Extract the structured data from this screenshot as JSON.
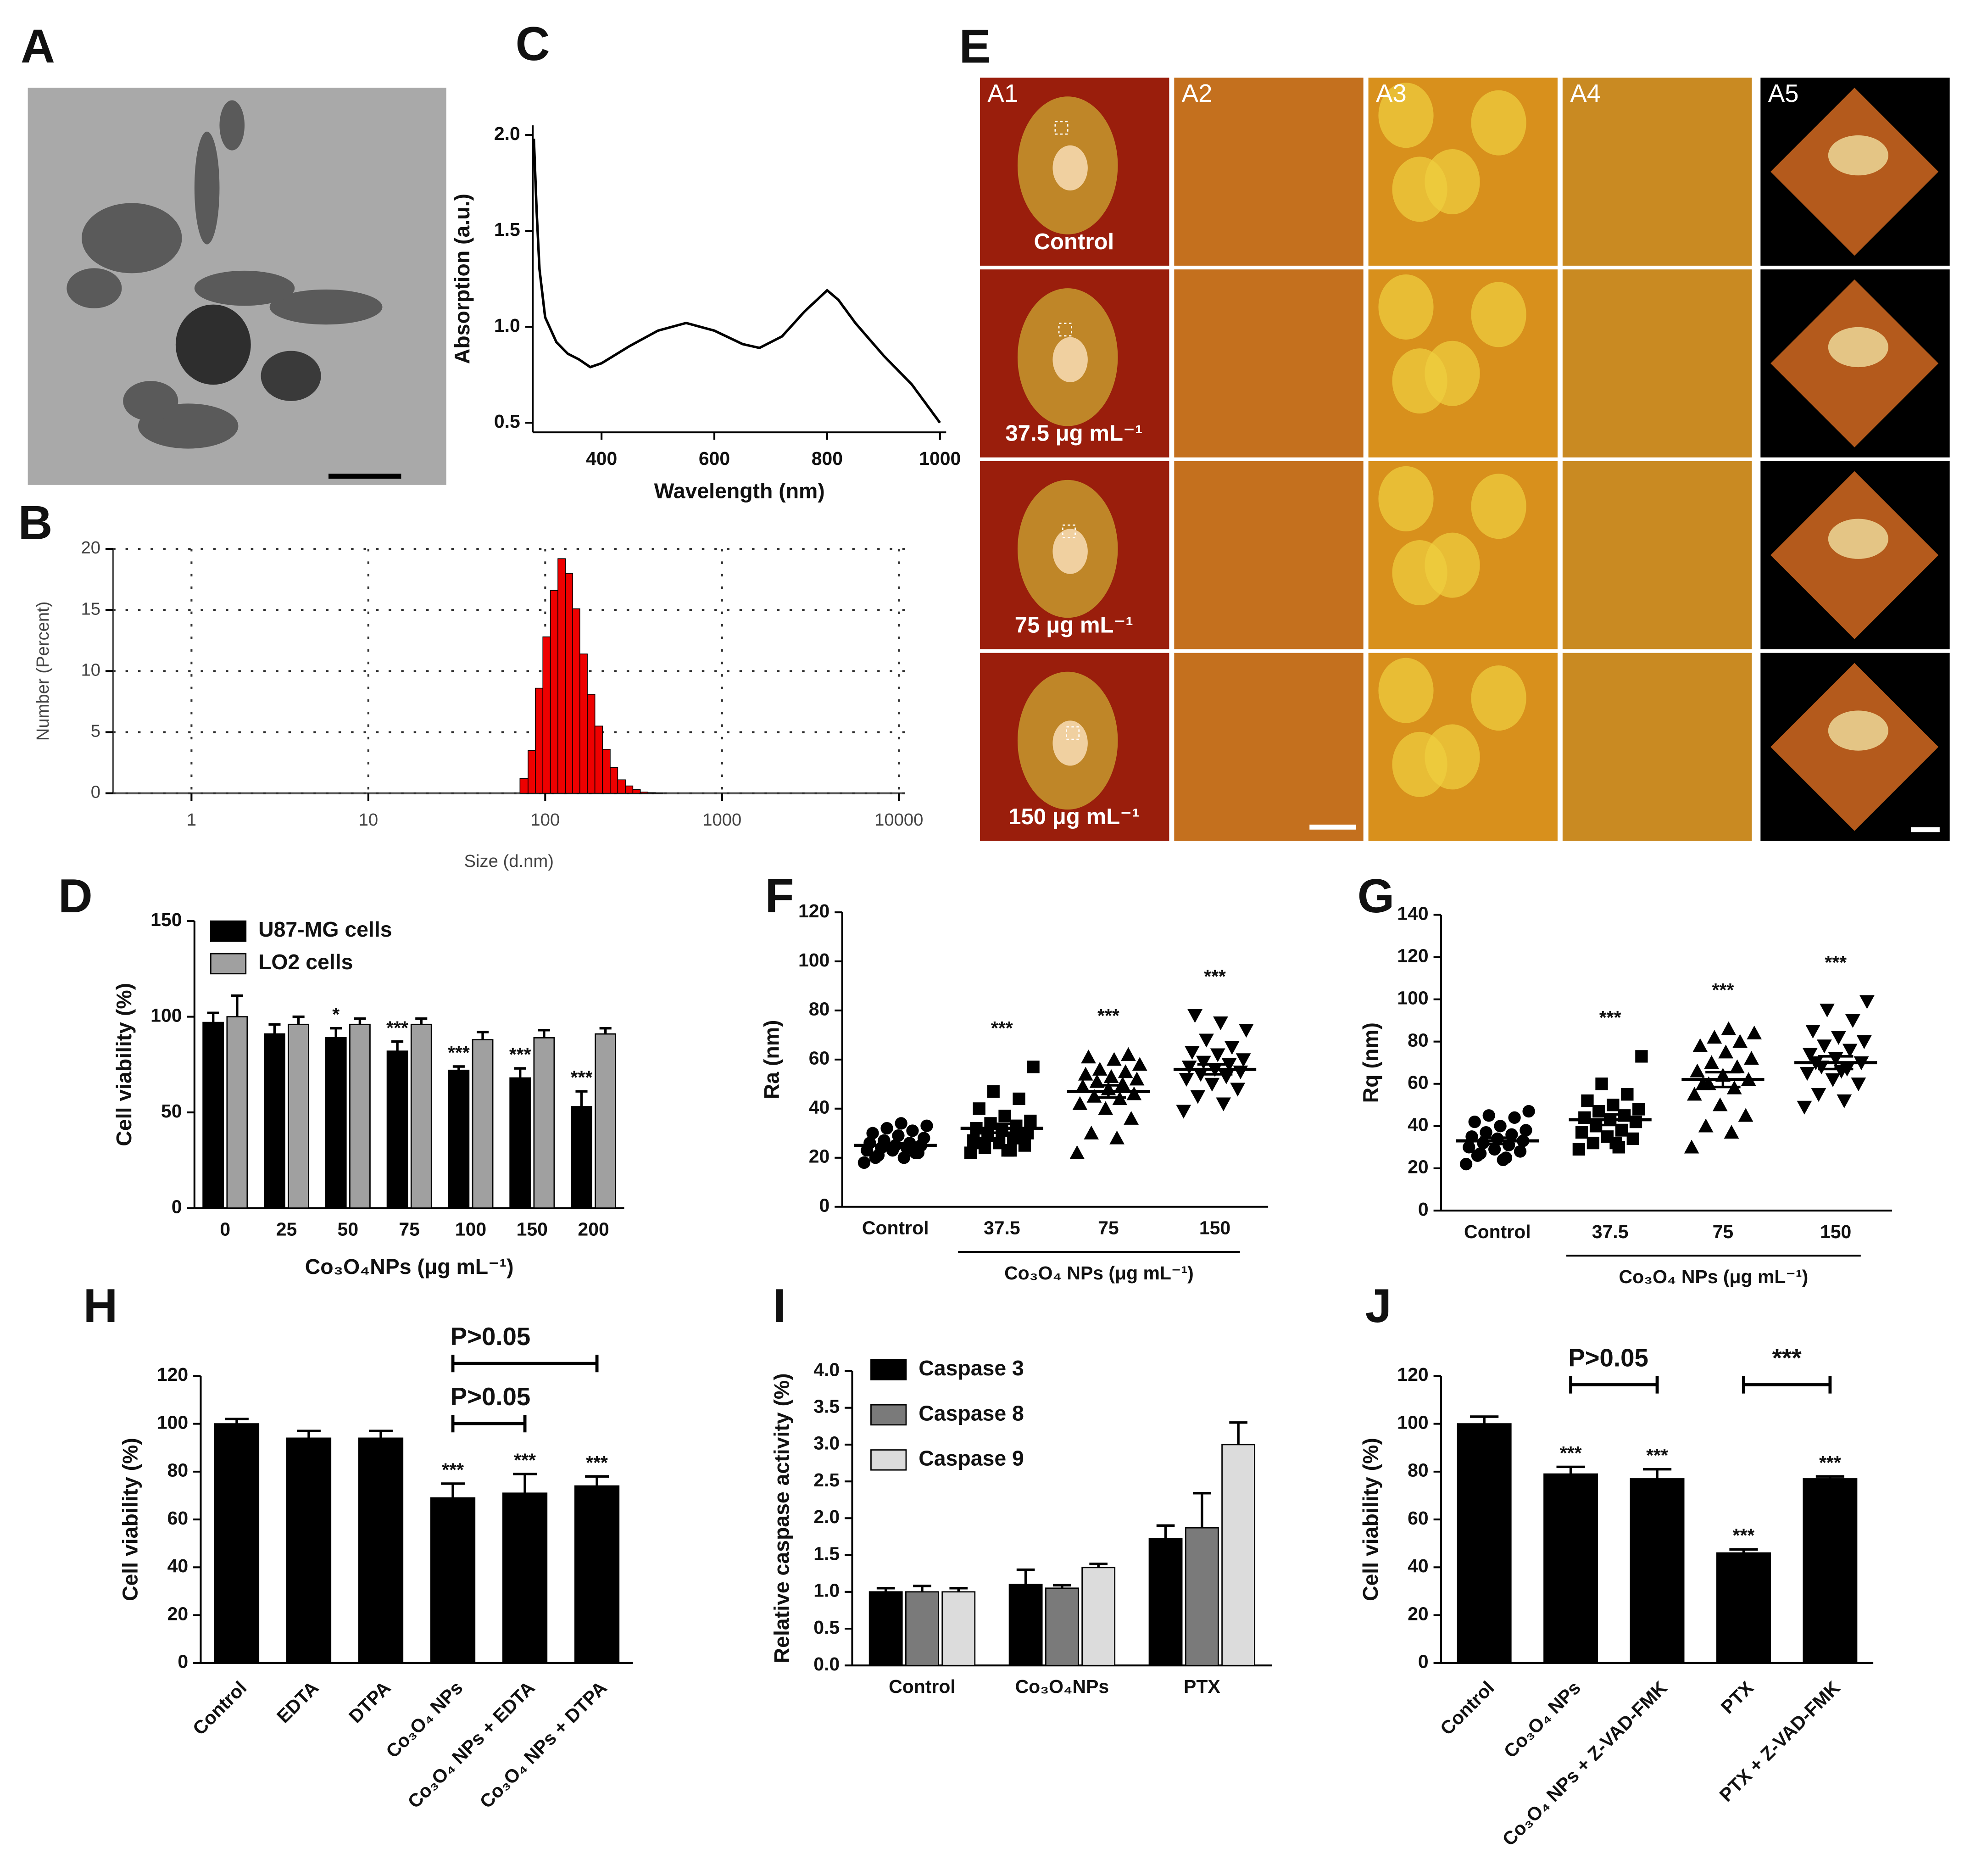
{
  "panel_labels": [
    "A",
    "B",
    "C",
    "D",
    "E",
    "F",
    "G",
    "H",
    "I",
    "J"
  ],
  "afm": {
    "columns": [
      "A1",
      "A2",
      "A3",
      "A4",
      "A5"
    ],
    "rows": [
      "Control",
      "37.5 μg mL⁻¹",
      "75 μg mL⁻¹",
      "150 μg mL⁻¹"
    ]
  },
  "chart_data": [
    {
      "type": "histogram",
      "xlabel": "Size (d.nm)",
      "ylabel": "Number (Percent)",
      "log_x": true,
      "grid": true,
      "color": "#ee0000",
      "bins": [
        72,
        80,
        88,
        97,
        107,
        118,
        130,
        143,
        157,
        173,
        191,
        211,
        233,
        257,
        284,
        313,
        345,
        381,
        420,
        464
      ],
      "counts": [
        1.2,
        3.5,
        8.6,
        12.8,
        16.6,
        19.2,
        18.0,
        15.1,
        11.4,
        8.1,
        5.5,
        3.6,
        2.1,
        1.1,
        0.6,
        0.3,
        0.1,
        0.05,
        0.02
      ],
      "xlim": [
        0.36,
        10800
      ],
      "xticks": [
        1,
        10,
        100,
        1000,
        10000
      ],
      "ylim": [
        0,
        20
      ],
      "yticks": [
        0,
        5,
        10,
        15,
        20
      ]
    },
    {
      "type": "line",
      "xlabel": "Wavelength (nm)",
      "ylabel": "Absorption (a.u.)",
      "color": "#000000",
      "x": [
        280,
        285,
        290,
        300,
        320,
        340,
        360,
        380,
        400,
        450,
        500,
        550,
        600,
        650,
        680,
        720,
        760,
        800,
        820,
        850,
        900,
        950,
        1000
      ],
      "y": [
        1.98,
        1.6,
        1.3,
        1.05,
        0.92,
        0.86,
        0.83,
        0.79,
        0.81,
        0.9,
        0.98,
        1.02,
        0.98,
        0.91,
        0.89,
        0.95,
        1.08,
        1.19,
        1.14,
        1.02,
        0.85,
        0.7,
        0.5
      ],
      "xlim": [
        278,
        1011
      ],
      "xticks": [
        400,
        600,
        800,
        1000
      ],
      "ylim": [
        0.45,
        2.05
      ],
      "yticks": [
        0.5,
        {
          "value": 1.0,
          "label": "1.0"
        },
        1.5,
        {
          "value": 2.0,
          "label": "2.0"
        }
      ]
    },
    {
      "type": "bar",
      "xlabel": "Co₃O₄NPs (μg mL⁻¹)",
      "ylabel": "Cell viability (%)",
      "legend": "upper left",
      "categories": [
        "0",
        "25",
        "50",
        "75",
        "100",
        "150",
        "200"
      ],
      "series": [
        {
          "name": "U87-MG cells",
          "color": "#000000",
          "values": [
            97,
            91,
            89,
            82,
            72,
            68,
            53
          ],
          "errors": [
            5,
            5,
            5,
            5,
            2,
            5,
            8
          ],
          "annotations": [
            null,
            null,
            "*",
            "***",
            "***",
            "***",
            "***"
          ]
        },
        {
          "name": "LO2 cells",
          "color": "#a0a0a0",
          "values": [
            100,
            96,
            96,
            96,
            88,
            89,
            91
          ],
          "errors": [
            11,
            4,
            3,
            3,
            4,
            4,
            3
          ]
        }
      ],
      "ylim": [
        0,
        150
      ],
      "yticks": [
        0,
        50,
        100,
        150
      ]
    },
    {
      "type": "dot",
      "ylabel": "Ra (nm)",
      "group_label": "Co₃O₄ NPs (μg mL⁻¹)",
      "color": "#000000",
      "categories": [
        "Control",
        "37.5",
        "75",
        "150"
      ],
      "markers": [
        "circle",
        "square",
        "triangle",
        "triangle-down"
      ],
      "values": [
        [
          18,
          20,
          21,
          22,
          23,
          23,
          24,
          24,
          25,
          25,
          26,
          26,
          27,
          28,
          29,
          30,
          31,
          32,
          33,
          34,
          20,
          22
        ],
        [
          22,
          23,
          24,
          25,
          26,
          27,
          28,
          29,
          30,
          31,
          32,
          33,
          34,
          35,
          37,
          40,
          44,
          47,
          57,
          23,
          26,
          28
        ],
        [
          22,
          28,
          30,
          36,
          40,
          42,
          44,
          45,
          46,
          48,
          49,
          50,
          51,
          52,
          53,
          54,
          55,
          56,
          58,
          60,
          61,
          62
        ],
        [
          39,
          42,
          45,
          48,
          50,
          52,
          53,
          54,
          55,
          56,
          57,
          58,
          59,
          60,
          62,
          63,
          65,
          68,
          72,
          75,
          78
        ]
      ],
      "means": [
        25,
        32,
        47,
        56
      ],
      "sems": [
        1,
        1.8,
        2.5,
        2
      ],
      "annotations": [
        null,
        "***",
        "***",
        "***"
      ],
      "ylim": [
        0,
        120
      ],
      "yticks": [
        0,
        20,
        40,
        60,
        80,
        100,
        120
      ]
    },
    {
      "type": "dot",
      "ylabel": "Rq (nm)",
      "group_label": "Co₃O₄ NPs (μg mL⁻¹)",
      "color": "#000000",
      "categories": [
        "Control",
        "37.5",
        "75",
        "150"
      ],
      "markers": [
        "circle",
        "square",
        "triangle",
        "triangle-down"
      ],
      "values": [
        [
          22,
          25,
          27,
          28,
          29,
          30,
          31,
          32,
          33,
          34,
          35,
          36,
          37,
          38,
          40,
          42,
          44,
          45,
          47,
          24,
          26
        ],
        [
          29,
          30,
          32,
          34,
          35,
          37,
          38,
          40,
          42,
          43,
          44,
          45,
          47,
          48,
          50,
          52,
          55,
          60,
          73,
          32
        ],
        [
          30,
          37,
          40,
          45,
          50,
          55,
          58,
          60,
          62,
          64,
          66,
          68,
          70,
          72,
          75,
          78,
          80,
          82,
          84,
          86,
          60
        ],
        [
          49,
          52,
          55,
          60,
          62,
          65,
          67,
          68,
          70,
          72,
          74,
          76,
          78,
          80,
          82,
          85,
          90,
          95,
          99,
          66,
          70
        ]
      ],
      "means": [
        33,
        43,
        62,
        70
      ],
      "sems": [
        1.5,
        2.5,
        3.5,
        3
      ],
      "annotations": [
        null,
        "***",
        "***",
        "***"
      ],
      "ylim": [
        0,
        140
      ],
      "yticks": [
        0,
        20,
        40,
        60,
        80,
        100,
        120,
        140
      ]
    },
    {
      "type": "bar",
      "ylabel": "Cell viability (%)",
      "xtick_rotation": -45,
      "categories": [
        "Control",
        "EDTA",
        "DTPA",
        "Co₃O₄ NPs",
        "Co₃O₄ NPs + EDTA",
        "Co₃O₄ NPs + DTPA"
      ],
      "series": [
        {
          "color": "#000000",
          "values": [
            100,
            94,
            94,
            69,
            71,
            74
          ],
          "errors": [
            2,
            3,
            3,
            6,
            8,
            4
          ],
          "annotations": [
            null,
            null,
            null,
            "***",
            "***",
            "***"
          ]
        }
      ],
      "brackets": [
        {
          "from": "Co₃O₄ NPs",
          "to": "Co₃O₄ NPs + DTPA",
          "label": "P>0.05"
        },
        {
          "from": "Co₃O₄ NPs",
          "to": "Co₃O₄ NPs + EDTA",
          "label": "P>0.05"
        }
      ],
      "ylim": [
        0,
        120
      ],
      "yticks": [
        0,
        20,
        40,
        60,
        80,
        100,
        120
      ]
    },
    {
      "type": "bar",
      "ylabel": "Relative caspase activity (%)",
      "legend": "upper left",
      "categories": [
        "Control",
        "Co₃O₄NPs",
        "PTX"
      ],
      "series": [
        {
          "name": "Caspase 3",
          "color": "#000000",
          "values": [
            1.0,
            1.1,
            1.72
          ],
          "errors": [
            0.05,
            0.2,
            0.18
          ]
        },
        {
          "name": "Caspase 8",
          "color": "#7a7a7a",
          "values": [
            1.0,
            1.05,
            1.87
          ],
          "errors": [
            0.08,
            0.04,
            0.47
          ]
        },
        {
          "name": "Caspase 9",
          "color": "#dcdcdc",
          "values": [
            1.0,
            1.33,
            3.0
          ],
          "errors": [
            0.05,
            0.05,
            0.3
          ]
        }
      ],
      "ylim": [
        0,
        4
      ],
      "yticks": [
        {
          "value": 0,
          "label": "0.0"
        },
        0.5,
        {
          "value": 1,
          "label": "1.0"
        },
        1.5,
        {
          "value": 2,
          "label": "2.0"
        },
        2.5,
        {
          "value": 3,
          "label": "3.0"
        },
        3.5,
        {
          "value": 4,
          "label": "4.0"
        }
      ]
    },
    {
      "type": "bar",
      "ylabel": "Cell viability (%)",
      "xtick_rotation": -45,
      "categories": [
        "Control",
        "Co₃O₄ NPs",
        "Co₃O₄ NPs + Z-VAD-FMK",
        "PTX",
        "PTX + Z-VAD-FMK"
      ],
      "series": [
        {
          "color": "#000000",
          "values": [
            100,
            79,
            77,
            46,
            77
          ],
          "errors": [
            3,
            3,
            4,
            1.5,
            1
          ],
          "annotations": [
            null,
            "***",
            "***",
            "***",
            "***"
          ]
        }
      ],
      "brackets": [
        {
          "from": "Co₃O₄ NPs",
          "to": "Co₃O₄ NPs + Z-VAD-FMK",
          "label": "P>0.05"
        },
        {
          "from": "PTX",
          "to": "PTX + Z-VAD-FMK",
          "label": "***"
        }
      ],
      "ylim": [
        0,
        120
      ],
      "yticks": [
        0,
        20,
        40,
        60,
        80,
        100,
        120
      ]
    }
  ]
}
